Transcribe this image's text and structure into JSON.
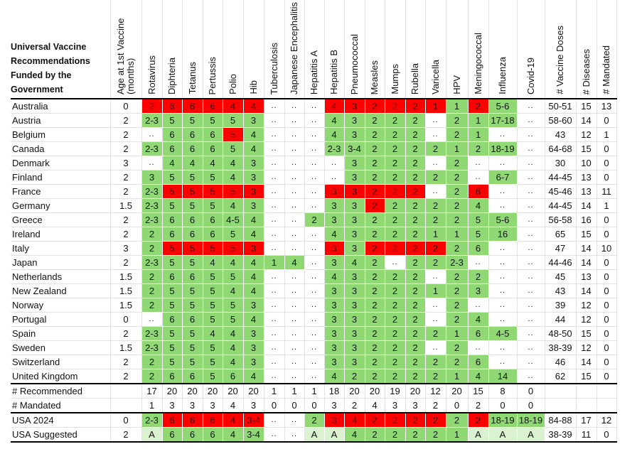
{
  "table": {
    "title": "Universal Vaccine Recommendations Funded by the Government",
    "columns": [
      "Age at 1st Vaccine (months)",
      "Rotavirus",
      "Diphteria",
      "Tetanus",
      "Pertussis",
      "Polio",
      "Hib",
      "Tuberculosis",
      "Japanese Encephalitis",
      "Hepatitis A",
      "Hepatitis B",
      "Pneumococcal",
      "Measles",
      "Mumps",
      "Rubella",
      "Varicella",
      "HPV",
      "Meningococcal",
      "Influenza",
      "Covid-19",
      "# Vaccine Doses",
      "# Diseases",
      "# Mandated"
    ],
    "legend_colors": {
      "M": "#ff0000",
      "R": "#8fd873",
      "S": "#daf2d0",
      "N": "#ffffff"
    },
    "rows": [
      {
        "name": "Australia",
        "age": "0",
        "v": [
          "2",
          "6",
          "6",
          "6",
          "4",
          "4",
          "..",
          "..",
          "..",
          "4",
          "3",
          "2",
          "2",
          "2",
          "1",
          "1",
          "2",
          "5-6",
          ".."
        ],
        "f": "MMMMMMNNNMMMMMMRMRN",
        "doses": "50-51",
        "diseases": "15",
        "mandated": "13"
      },
      {
        "name": "Austria",
        "age": "2",
        "v": [
          "2-3",
          "5",
          "5",
          "5",
          "5",
          "3",
          "..",
          "..",
          "..",
          "4",
          "3",
          "2",
          "2",
          "2",
          "..",
          "2",
          "1",
          "17-18",
          ".."
        ],
        "f": "RRRRRRNNNRRRRRNRRRN",
        "doses": "58-60",
        "diseases": "14",
        "mandated": "0"
      },
      {
        "name": "Belgium",
        "age": "2",
        "v": [
          "..",
          "6",
          "6",
          "6",
          "5",
          "4",
          "..",
          "..",
          "..",
          "4",
          "3",
          "2",
          "2",
          "2",
          "..",
          "2",
          "1",
          "..",
          ".."
        ],
        "f": "NRRRMRNNNRRRRRNRRNN",
        "doses": "43",
        "diseases": "12",
        "mandated": "1"
      },
      {
        "name": "Canada",
        "age": "2",
        "v": [
          "2-3",
          "6",
          "6",
          "6",
          "5",
          "4",
          "..",
          "..",
          "..",
          "2-3",
          "3-4",
          "2",
          "2",
          "2",
          "2",
          "1",
          "2",
          "18-19",
          ".."
        ],
        "f": "RRRRRRNNNRRRRRRRRRN",
        "doses": "64-68",
        "diseases": "15",
        "mandated": "0"
      },
      {
        "name": "Denmark",
        "age": "3",
        "v": [
          "..",
          "4",
          "4",
          "4",
          "4",
          "3",
          "..",
          "..",
          "..",
          "..",
          "3",
          "2",
          "2",
          "2",
          "..",
          "2",
          "..",
          "..",
          ".."
        ],
        "f": "NRRRRRNNNNRRRRNRNNN",
        "doses": "30",
        "diseases": "10",
        "mandated": "0"
      },
      {
        "name": "Finland",
        "age": "2",
        "v": [
          "3",
          "5",
          "5",
          "5",
          "4",
          "3",
          "..",
          "..",
          "..",
          "..",
          "3",
          "2",
          "2",
          "2",
          "2",
          "2",
          "..",
          "6-7",
          ".."
        ],
        "f": "RRRRRRNNNNRRRRRRNRN",
        "doses": "44-45",
        "diseases": "13",
        "mandated": "0"
      },
      {
        "name": "France",
        "age": "2",
        "v": [
          "2-3",
          "5",
          "5",
          "5",
          "5",
          "3",
          "..",
          "..",
          "..",
          "3",
          "3",
          "2",
          "2",
          "2",
          "..",
          "2",
          "6",
          "..",
          ".."
        ],
        "f": "RMMMMMNNNMMMMMNRMNN",
        "doses": "45-46",
        "diseases": "13",
        "mandated": "11"
      },
      {
        "name": "Germany",
        "age": "1.5",
        "v": [
          "2-3",
          "5",
          "5",
          "5",
          "4",
          "3",
          "..",
          "..",
          "..",
          "3",
          "3",
          "2",
          "2",
          "2",
          "2",
          "2",
          "4",
          "..",
          ".."
        ],
        "f": "RRRRRRNNNRRMRRRRRNN",
        "doses": "44-45",
        "diseases": "14",
        "mandated": "1"
      },
      {
        "name": "Greece",
        "age": "2",
        "v": [
          "2-3",
          "6",
          "6",
          "6",
          "4-5",
          "4",
          "..",
          "..",
          "2",
          "3",
          "3",
          "2",
          "2",
          "2",
          "2",
          "2",
          "5",
          "5-6",
          ".."
        ],
        "f": "RRRRRRNNRRRRRRRRRRN",
        "doses": "56-58",
        "diseases": "16",
        "mandated": "0"
      },
      {
        "name": "Ireland",
        "age": "2",
        "v": [
          "2",
          "6",
          "6",
          "6",
          "5",
          "4",
          "..",
          "..",
          "..",
          "4",
          "3",
          "2",
          "2",
          "2",
          "1",
          "1",
          "5",
          "16",
          ".."
        ],
        "f": "RRRRRRNNNRRRRRRRRRN",
        "doses": "65",
        "diseases": "15",
        "mandated": "0"
      },
      {
        "name": "Italy",
        "age": "3",
        "v": [
          "2",
          "5",
          "5",
          "5",
          "5",
          "3",
          "..",
          "..",
          "..",
          "3",
          "3",
          "2",
          "2",
          "2",
          "2",
          "2",
          "6",
          "..",
          ".."
        ],
        "f": "RMMMMMNNNMRMMMMRRNN",
        "doses": "47",
        "diseases": "14",
        "mandated": "10"
      },
      {
        "name": "Japan",
        "age": "2",
        "v": [
          "2-3",
          "5",
          "5",
          "4",
          "4",
          "4",
          "1",
          "4",
          "..",
          "3",
          "4",
          "2",
          "..",
          "2",
          "2",
          "2-3",
          "..",
          "..",
          ".."
        ],
        "f": "RRRRRRRRNRRRNRRRNNN",
        "doses": "44-46",
        "diseases": "14",
        "mandated": "0"
      },
      {
        "name": "Netherlands",
        "age": "1.5",
        "v": [
          "2",
          "6",
          "6",
          "5",
          "5",
          "4",
          "..",
          "..",
          "..",
          "4",
          "3",
          "2",
          "2",
          "2",
          "..",
          "2",
          "2",
          "..",
          ".."
        ],
        "f": "RRRRRRNNNRRRRRNRRNN",
        "doses": "45",
        "diseases": "13",
        "mandated": "0"
      },
      {
        "name": "New Zealand",
        "age": "1.5",
        "v": [
          "2",
          "5",
          "5",
          "5",
          "4",
          "4",
          "..",
          "..",
          "..",
          "3",
          "3",
          "2",
          "2",
          "2",
          "1",
          "2",
          "3",
          "..",
          ".."
        ],
        "f": "RRRRRRNNNRRRRRRRRNN",
        "doses": "43",
        "diseases": "14",
        "mandated": "0"
      },
      {
        "name": "Norway",
        "age": "1.5",
        "v": [
          "2",
          "5",
          "5",
          "5",
          "5",
          "3",
          "..",
          "..",
          "..",
          "3",
          "3",
          "2",
          "2",
          "2",
          "..",
          "2",
          "..",
          "..",
          ".."
        ],
        "f": "RRRRRRNNNRRRRRNRNNN",
        "doses": "39",
        "diseases": "12",
        "mandated": "0"
      },
      {
        "name": "Portugal",
        "age": "0",
        "v": [
          "..",
          "6",
          "6",
          "5",
          "5",
          "4",
          "..",
          "..",
          "..",
          "3",
          "3",
          "2",
          "2",
          "2",
          "..",
          "2",
          "4",
          "..",
          ".."
        ],
        "f": "NRRRRRNNNRRRRRNRRNN",
        "doses": "44",
        "diseases": "12",
        "mandated": "0"
      },
      {
        "name": "Spain",
        "age": "2",
        "v": [
          "2-3",
          "5",
          "5",
          "4",
          "4",
          "3",
          "..",
          "..",
          "..",
          "3",
          "3",
          "2",
          "2",
          "2",
          "2",
          "1",
          "6",
          "4-5",
          ".."
        ],
        "f": "RRRRRRNNNRRRRRRRRRN",
        "doses": "48-50",
        "diseases": "15",
        "mandated": "0"
      },
      {
        "name": "Sweden",
        "age": "1.5",
        "v": [
          "2-3",
          "5",
          "5",
          "5",
          "4",
          "3",
          "..",
          "..",
          "..",
          "3",
          "3",
          "2",
          "2",
          "2",
          "..",
          "2",
          "..",
          "..",
          ".."
        ],
        "f": "RRRRRRNNNRRRRRNRNNN",
        "doses": "38-39",
        "diseases": "12",
        "mandated": "0"
      },
      {
        "name": "Switzerland",
        "age": "2",
        "v": [
          "2",
          "5",
          "5",
          "5",
          "4",
          "3",
          "..",
          "..",
          "..",
          "3",
          "3",
          "2",
          "2",
          "2",
          "2",
          "2",
          "6",
          "..",
          ".."
        ],
        "f": "RRRRRRNNNRRRRRRRRNN",
        "doses": "46",
        "diseases": "14",
        "mandated": "0"
      },
      {
        "name": "United Kingdom",
        "age": "2",
        "v": [
          "2",
          "6",
          "6",
          "5",
          "6",
          "4",
          "..",
          "..",
          "..",
          "4",
          "2",
          "2",
          "2",
          "2",
          "2",
          "1",
          "4",
          "14",
          ".."
        ],
        "f": "RRRRRRNNNRRRRRRRRRN",
        "doses": "62",
        "diseases": "15",
        "mandated": "0"
      }
    ],
    "summary": [
      {
        "name": "# Recommended",
        "age": "",
        "v": [
          "17",
          "20",
          "20",
          "20",
          "20",
          "20",
          "1",
          "1",
          "1",
          "18",
          "20",
          "20",
          "19",
          "20",
          "12",
          "20",
          "15",
          "8",
          "0"
        ],
        "f": "NNNNNNNNNNNNNNNNNNN",
        "doses": "",
        "diseases": "",
        "mandated": ""
      },
      {
        "name": "# Mandated",
        "age": "",
        "v": [
          "1",
          "3",
          "3",
          "3",
          "4",
          "3",
          "0",
          "0",
          "0",
          "3",
          "2",
          "4",
          "3",
          "3",
          "2",
          "0",
          "2",
          "0",
          "0"
        ],
        "f": "NNNNNNNNNNNNNNNNNNN",
        "doses": "",
        "diseases": "",
        "mandated": ""
      }
    ],
    "usa": [
      {
        "name": "USA 2024",
        "age": "0",
        "v": [
          "2-3",
          "6",
          "6",
          "6",
          "4",
          "3-4",
          "..",
          "..",
          "2",
          "3",
          "4",
          "2",
          "2",
          "2",
          "2",
          "2",
          "2",
          "18-19",
          "18-19"
        ],
        "f": "RMMMMMNNRMMMMMMRMRR",
        "doses": "84-88",
        "diseases": "17",
        "mandated": "12"
      },
      {
        "name": "USA Suggested",
        "age": "2",
        "v": [
          "A",
          "6",
          "6",
          "6",
          "4",
          "3-4",
          "..",
          "..",
          "A",
          "A",
          "4",
          "2",
          "2",
          "2",
          "2",
          "1",
          "A",
          "A",
          "A"
        ],
        "f": "SRRRRRNNSSRRRRRRSSS",
        "doses": "38-39",
        "diseases": "11",
        "mandated": "0"
      }
    ]
  }
}
